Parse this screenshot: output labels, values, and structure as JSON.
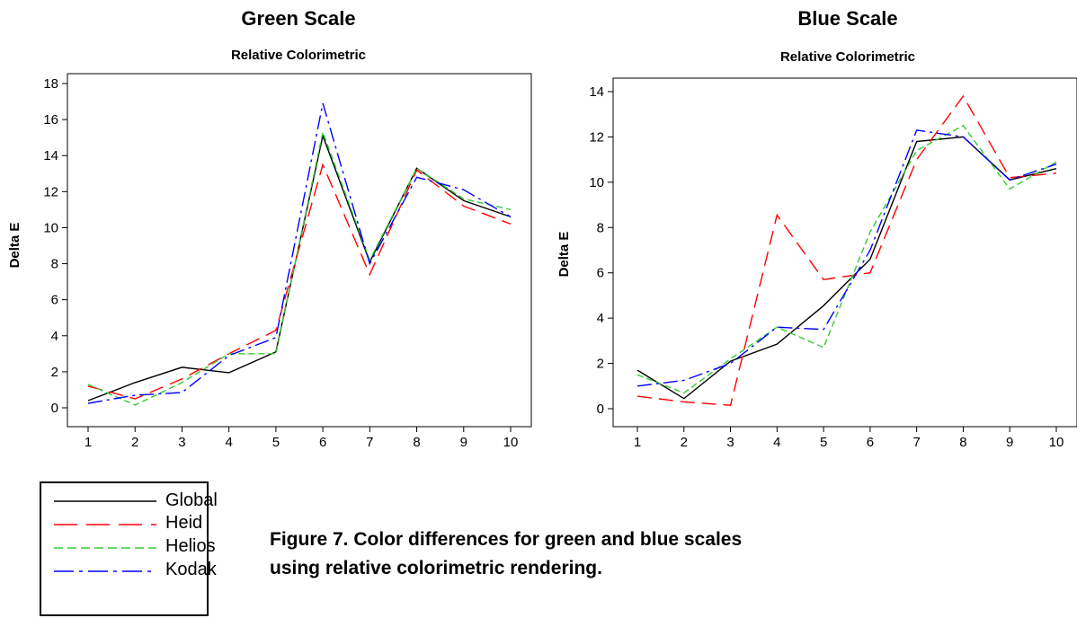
{
  "chart_data": [
    {
      "type": "line",
      "title": "Green Scale",
      "subtitle": "Relative Colorimetric",
      "xlabel": "",
      "ylabel": "Delta E",
      "x": [
        1,
        2,
        3,
        4,
        5,
        6,
        7,
        8,
        9,
        10
      ],
      "xticks": [
        "1",
        "2",
        "3",
        "4",
        "5",
        "6",
        "7",
        "8",
        "9",
        "10"
      ],
      "yticks": [
        "0",
        "2",
        "4",
        "6",
        "8",
        "10",
        "12",
        "14",
        "16",
        "18"
      ],
      "ylim": [
        0,
        18
      ],
      "series": [
        {
          "name": "Global",
          "values": [
            0.4,
            1.4,
            2.25,
            1.95,
            3.1,
            15.1,
            8.1,
            13.3,
            11.5,
            10.6
          ]
        },
        {
          "name": "Heid",
          "values": [
            1.2,
            0.5,
            1.6,
            3.0,
            4.3,
            13.5,
            7.4,
            13.2,
            11.2,
            10.2
          ]
        },
        {
          "name": "Helios",
          "values": [
            1.3,
            0.15,
            1.4,
            3.0,
            3.0,
            15.3,
            8.2,
            13.3,
            11.6,
            11.0
          ]
        },
        {
          "name": "Kodak",
          "values": [
            0.25,
            0.7,
            0.85,
            2.9,
            3.9,
            16.9,
            8.0,
            12.8,
            12.1,
            10.6
          ]
        }
      ]
    },
    {
      "type": "line",
      "title": "Blue Scale",
      "subtitle": "Relative Colorimetric",
      "xlabel": "",
      "ylabel": "Delta E",
      "x": [
        1,
        2,
        3,
        4,
        5,
        6,
        7,
        8,
        9,
        10
      ],
      "xticks": [
        "1",
        "2",
        "3",
        "4",
        "5",
        "6",
        "7",
        "8",
        "9",
        "10"
      ],
      "yticks": [
        "0",
        "2",
        "4",
        "6",
        "8",
        "10",
        "12",
        "14"
      ],
      "ylim": [
        0,
        14
      ],
      "series": [
        {
          "name": "Global",
          "values": [
            1.7,
            0.45,
            2.1,
            2.85,
            4.55,
            6.6,
            11.8,
            12.0,
            10.1,
            10.6
          ]
        },
        {
          "name": "Heid",
          "values": [
            0.55,
            0.3,
            0.15,
            8.55,
            5.7,
            6.0,
            11.0,
            13.8,
            10.2,
            10.4
          ]
        },
        {
          "name": "Helios",
          "values": [
            1.5,
            0.7,
            2.2,
            3.6,
            2.7,
            7.8,
            11.4,
            12.5,
            9.7,
            10.9
          ]
        },
        {
          "name": "Kodak",
          "values": [
            1.0,
            1.25,
            2.0,
            3.6,
            3.5,
            7.0,
            12.3,
            12.0,
            10.1,
            10.8
          ]
        }
      ]
    }
  ],
  "series_styles": [
    {
      "name": "Global",
      "color": "#000000",
      "dash": "solid"
    },
    {
      "name": "Heid",
      "color": "#ff0000",
      "dash": "long-dash"
    },
    {
      "name": "Helios",
      "color": "#33cc33",
      "dash": "dash"
    },
    {
      "name": "Kodak",
      "color": "#0000ff",
      "dash": "dash-dot"
    }
  ],
  "legend": {
    "items": [
      "Global",
      "Heid",
      "Helios",
      "Kodak"
    ]
  },
  "caption": {
    "line1": "Figure 7. Color differences for green and blue scales",
    "line2": "using relative colorimetric rendering."
  }
}
